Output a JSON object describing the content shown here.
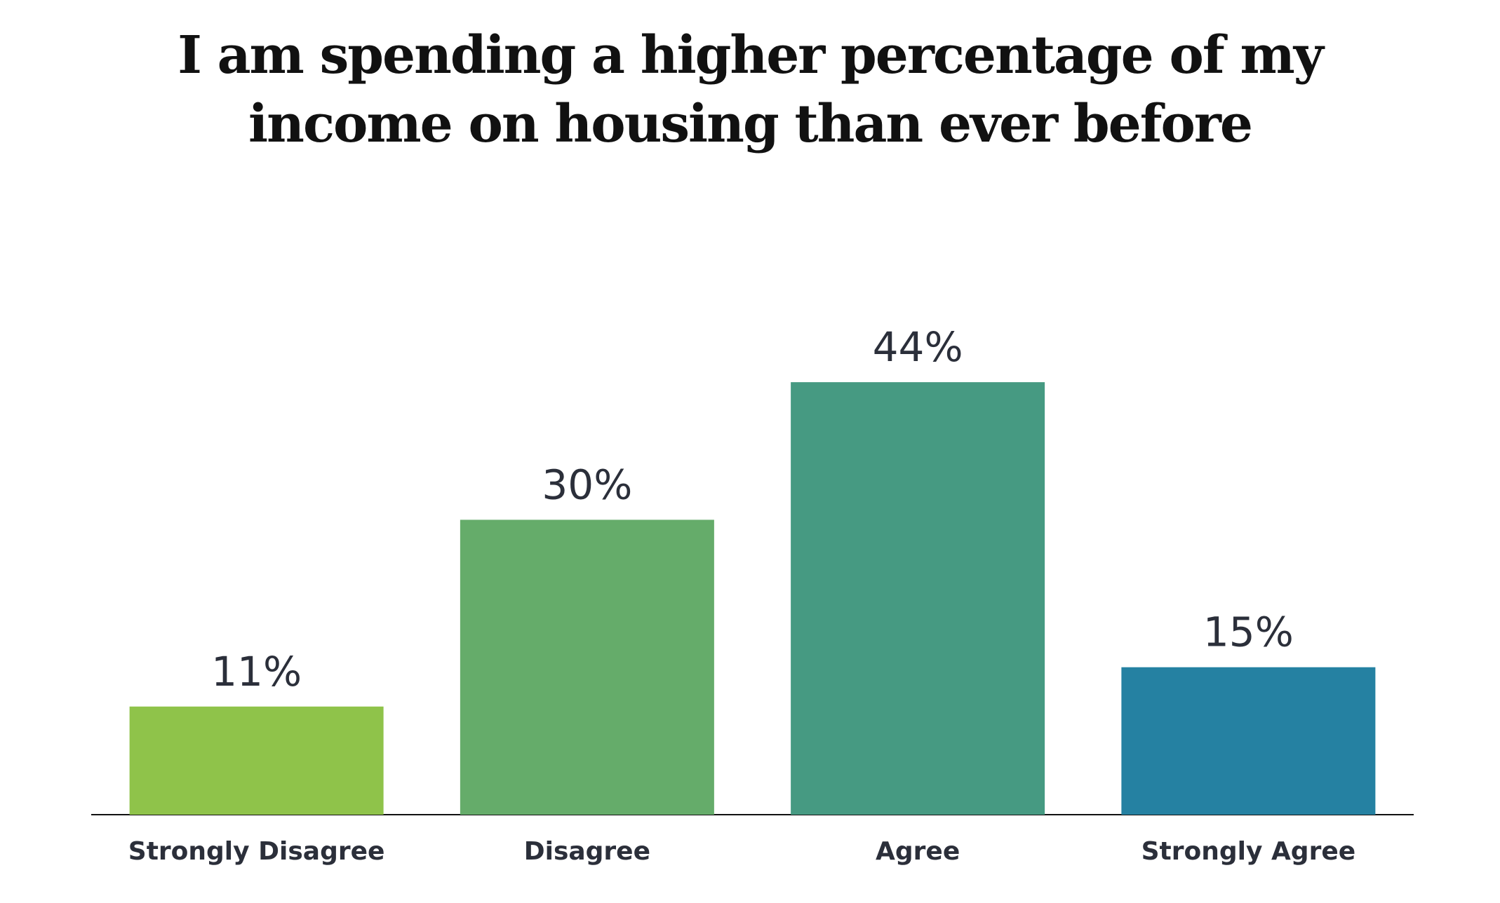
{
  "chart_data": {
    "type": "bar",
    "title": "I am spending a higher percentage of my income on housing than ever before",
    "categories": [
      "Strongly Disagree",
      "Disagree",
      "Agree",
      "Strongly Agree"
    ],
    "values": [
      11,
      30,
      44,
      15
    ],
    "value_labels": [
      "11%",
      "30%",
      "44%",
      "15%"
    ],
    "colors": [
      "#8fc34a",
      "#65ac6a",
      "#469a82",
      "#2581a2"
    ]
  }
}
